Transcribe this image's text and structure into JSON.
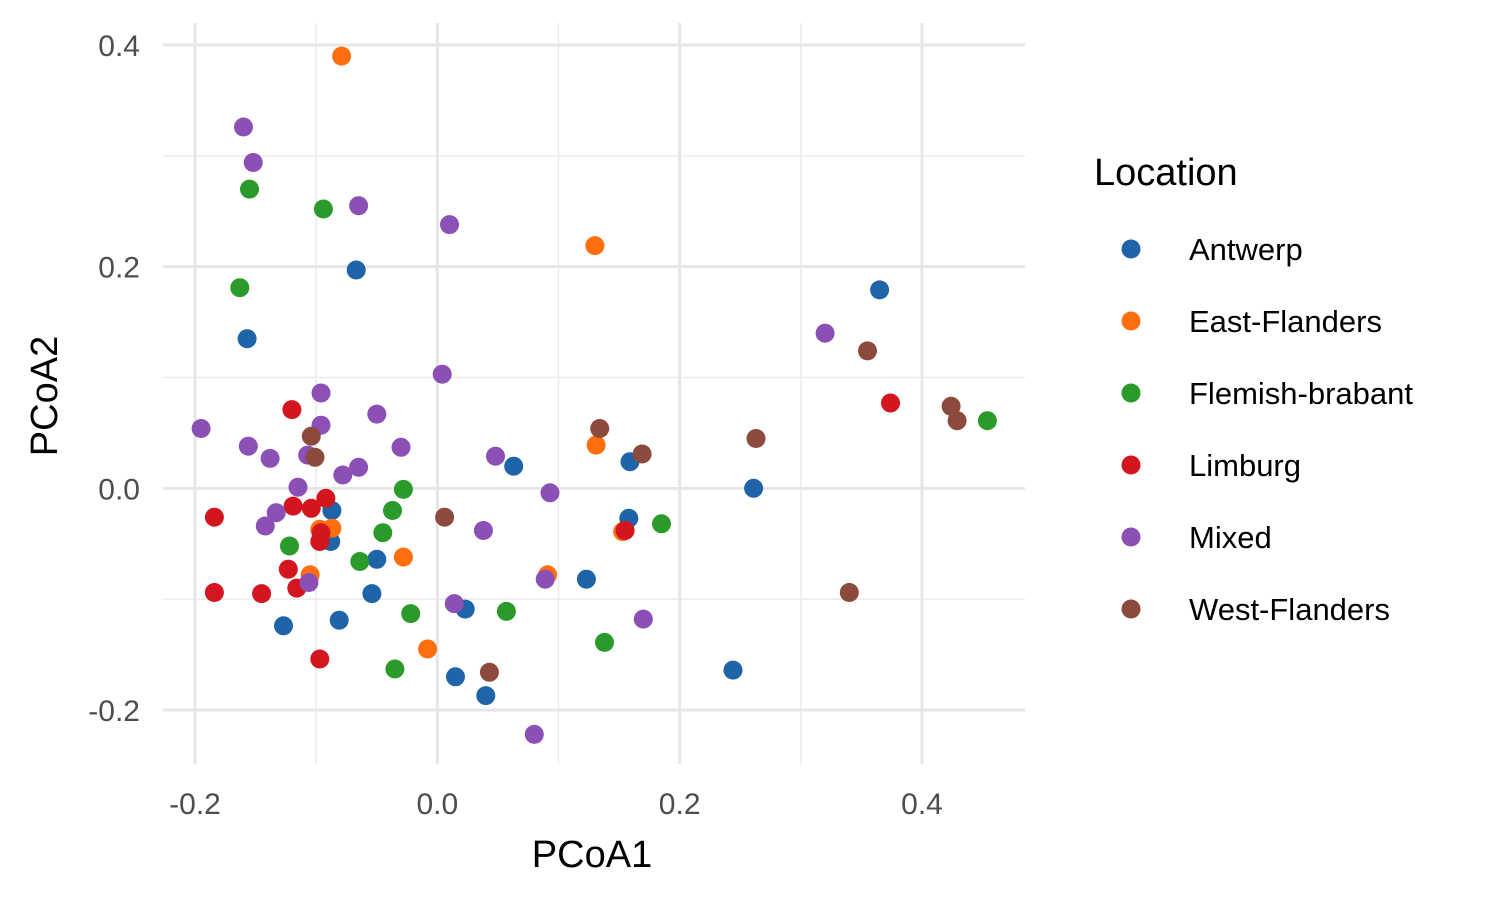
{
  "chart_data": {
    "type": "scatter",
    "xlabel": "PCoA1",
    "ylabel": "PCoA2",
    "xlim": [
      -0.235,
      0.475
    ],
    "ylim": [
      -0.25,
      0.42
    ],
    "x_ticks": [
      -0.2,
      0.0,
      0.2,
      0.4
    ],
    "y_ticks": [
      -0.2,
      0.0,
      0.2,
      0.4
    ],
    "x_tick_labels": [
      "-0.2",
      "0.0",
      "0.2",
      "0.4"
    ],
    "y_tick_labels": [
      "-0.2",
      "0.0",
      "0.2",
      "0.4"
    ],
    "grid": true,
    "legend": {
      "title": "Location",
      "placement": "right"
    },
    "series": [
      {
        "name": "Antwerp",
        "color": "#1f63a8",
        "points": [
          [
            -0.157,
            0.135
          ],
          [
            -0.067,
            0.197
          ],
          [
            0.365,
            0.179
          ],
          [
            0.063,
            0.02
          ],
          [
            0.159,
            0.024
          ],
          [
            0.261,
            0.0
          ],
          [
            0.158,
            -0.027
          ],
          [
            -0.087,
            -0.02
          ],
          [
            -0.088,
            -0.048
          ],
          [
            -0.05,
            -0.064
          ],
          [
            0.123,
            -0.082
          ],
          [
            -0.054,
            -0.095
          ],
          [
            0.023,
            -0.109
          ],
          [
            -0.081,
            -0.119
          ],
          [
            -0.127,
            -0.124
          ],
          [
            0.244,
            -0.164
          ],
          [
            0.015,
            -0.17
          ],
          [
            0.04,
            -0.187
          ]
        ]
      },
      {
        "name": "East-Flanders",
        "color": "#ff6f0e",
        "points": [
          [
            -0.079,
            0.39
          ],
          [
            0.13,
            0.219
          ],
          [
            0.131,
            0.039
          ],
          [
            -0.087,
            -0.036
          ],
          [
            -0.097,
            -0.037
          ],
          [
            0.153,
            -0.039
          ],
          [
            -0.028,
            -0.062
          ],
          [
            -0.105,
            -0.078
          ],
          [
            0.091,
            -0.078
          ],
          [
            -0.008,
            -0.145
          ]
        ]
      },
      {
        "name": "Flemish-brabant",
        "color": "#2a9a2a",
        "points": [
          [
            -0.155,
            0.27
          ],
          [
            -0.094,
            0.252
          ],
          [
            -0.163,
            0.181
          ],
          [
            0.454,
            0.061
          ],
          [
            -0.028,
            -0.001
          ],
          [
            -0.037,
            -0.02
          ],
          [
            0.185,
            -0.032
          ],
          [
            -0.045,
            -0.04
          ],
          [
            -0.122,
            -0.052
          ],
          [
            -0.064,
            -0.066
          ],
          [
            -0.022,
            -0.113
          ],
          [
            0.057,
            -0.111
          ],
          [
            0.138,
            -0.139
          ],
          [
            -0.035,
            -0.163
          ]
        ]
      },
      {
        "name": "Limburg",
        "color": "#d3151f",
        "points": [
          [
            -0.12,
            0.071
          ],
          [
            0.374,
            0.077
          ],
          [
            -0.092,
            -0.009
          ],
          [
            -0.119,
            -0.016
          ],
          [
            -0.104,
            -0.018
          ],
          [
            -0.184,
            -0.026
          ],
          [
            -0.096,
            -0.04
          ],
          [
            0.155,
            -0.038
          ],
          [
            -0.097,
            -0.048
          ],
          [
            -0.123,
            -0.073
          ],
          [
            -0.116,
            -0.09
          ],
          [
            -0.184,
            -0.094
          ],
          [
            -0.145,
            -0.095
          ],
          [
            -0.097,
            -0.154
          ]
        ]
      },
      {
        "name": "Mixed",
        "color": "#8c4fb6",
        "points": [
          [
            -0.16,
            0.326
          ],
          [
            -0.152,
            0.294
          ],
          [
            -0.065,
            0.255
          ],
          [
            0.01,
            0.238
          ],
          [
            0.32,
            0.14
          ],
          [
            0.004,
            0.103
          ],
          [
            -0.096,
            0.086
          ],
          [
            -0.05,
            0.067
          ],
          [
            -0.096,
            0.057
          ],
          [
            -0.195,
            0.054
          ],
          [
            -0.156,
            0.038
          ],
          [
            -0.03,
            0.037
          ],
          [
            -0.138,
            0.027
          ],
          [
            -0.107,
            0.03
          ],
          [
            0.048,
            0.029
          ],
          [
            -0.065,
            0.019
          ],
          [
            -0.078,
            0.012
          ],
          [
            -0.115,
            0.001
          ],
          [
            0.093,
            -0.004
          ],
          [
            -0.133,
            -0.022
          ],
          [
            -0.142,
            -0.034
          ],
          [
            0.038,
            -0.038
          ],
          [
            0.089,
            -0.082
          ],
          [
            -0.106,
            -0.085
          ],
          [
            0.014,
            -0.104
          ],
          [
            0.17,
            -0.118
          ],
          [
            0.08,
            -0.222
          ]
        ]
      },
      {
        "name": "West-Flanders",
        "color": "#8b4a3c",
        "points": [
          [
            0.355,
            0.124
          ],
          [
            0.424,
            0.074
          ],
          [
            0.429,
            0.061
          ],
          [
            0.134,
            0.054
          ],
          [
            -0.104,
            0.047
          ],
          [
            0.263,
            0.045
          ],
          [
            0.169,
            0.031
          ],
          [
            -0.101,
            0.028
          ],
          [
            0.006,
            -0.026
          ],
          [
            0.34,
            -0.094
          ],
          [
            0.043,
            -0.166
          ]
        ]
      }
    ]
  }
}
